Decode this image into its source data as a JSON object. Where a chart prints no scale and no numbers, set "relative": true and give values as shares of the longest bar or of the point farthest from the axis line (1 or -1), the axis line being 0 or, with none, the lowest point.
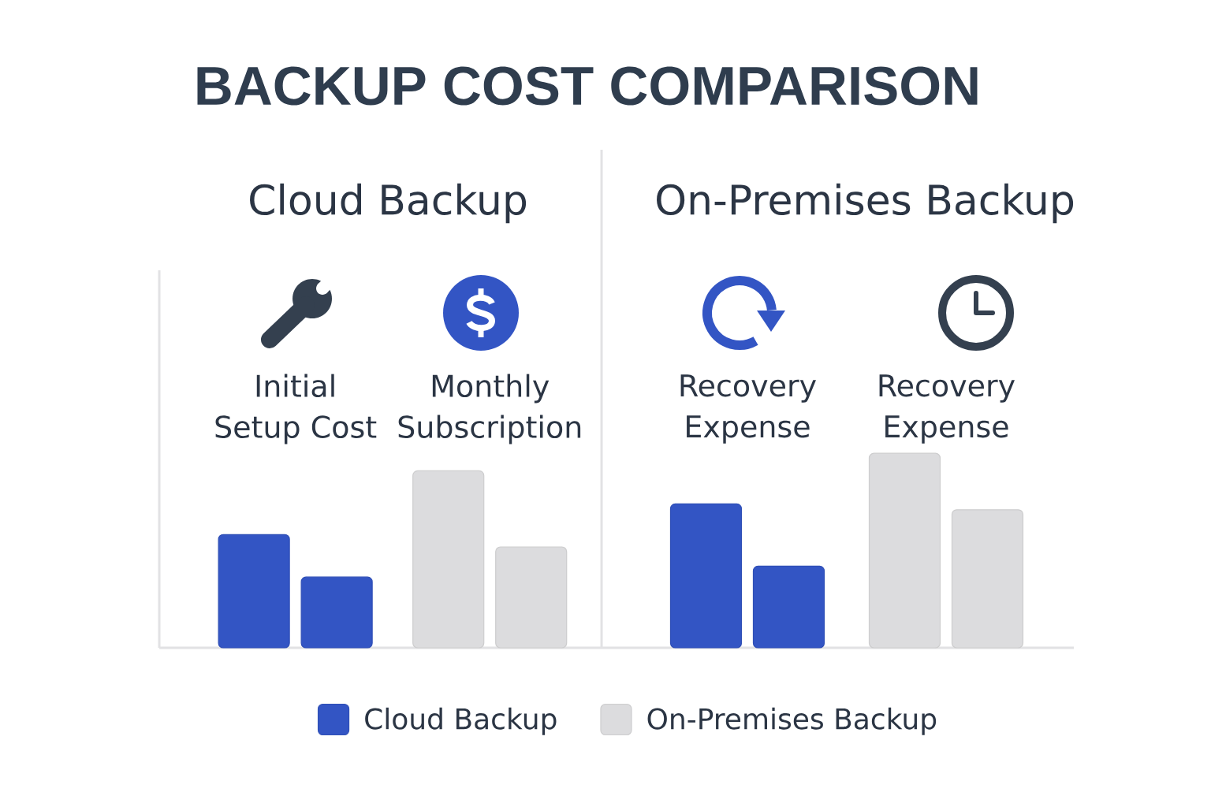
{
  "chart_data": [
    {
      "type": "bar",
      "title": "BACKUP COST COMPARISON",
      "subtitle": "Cloud Backup",
      "categories": [
        "Initial Setup Cost",
        "Monthly Subscription"
      ],
      "series": [
        {
          "name": "Cloud Backup",
          "color": "#3355c4",
          "values": [
            0.64,
            null
          ]
        },
        {
          "color": "#3355c4",
          "values": [
            0.4,
            null
          ]
        },
        {
          "name": "On-Premises Backup",
          "color": "#dcdcde",
          "values": [
            null,
            1
          ]
        },
        {
          "color": "#dcdcde",
          "values": [
            null,
            0.57
          ]
        }
      ],
      "relative": true,
      "legend": "bottom"
    },
    {
      "type": "bar",
      "subtitle": "On-Premises Backup",
      "categories": [
        "Recovery Expense",
        "Recovery Expense"
      ],
      "series": [
        {
          "color": "#3355c4",
          "values": [
            0.74,
            null
          ]
        },
        {
          "color": "#3355c4",
          "values": [
            0.42,
            null
          ]
        },
        {
          "color": "#dcdcde",
          "values": [
            null,
            1
          ]
        },
        {
          "color": "#dcdcde",
          "values": [
            null,
            0.71
          ]
        }
      ],
      "relative": true
    }
  ]
}
